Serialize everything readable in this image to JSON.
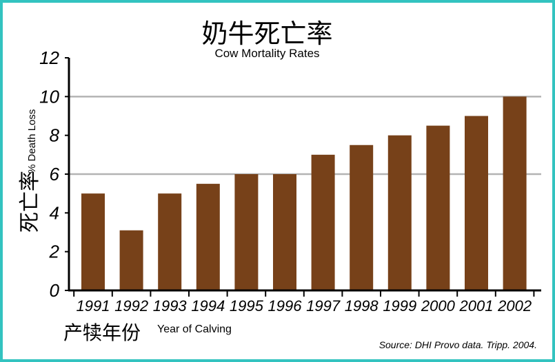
{
  "chart_data": {
    "type": "bar",
    "title": "奶牛死亡率",
    "subtitle": "Cow Mortality Rates",
    "ylabel": "死亡率",
    "ylabel_en": "% Death Loss",
    "xlabel": "产犊年份",
    "xlabel_en": "Year of Calving",
    "source": "Source: DHI Provo data. Tripp. 2004.",
    "categories": [
      "1991",
      "1992",
      "1993",
      "1994",
      "1995",
      "1996",
      "1997",
      "1998",
      "1999",
      "2000",
      "2001",
      "2002"
    ],
    "values": [
      5.0,
      3.1,
      5.0,
      5.5,
      6.0,
      6.0,
      7.0,
      7.5,
      8.0,
      8.5,
      9.0,
      10.0
    ],
    "ylim": [
      0,
      12
    ],
    "yticks": [
      0,
      2,
      4,
      6,
      8,
      10,
      12
    ],
    "grid_values": [
      6,
      10
    ],
    "grid": true,
    "bar_color": "#774119",
    "grid_color": "#b3b3b3",
    "border_color": "#33c3c0"
  }
}
